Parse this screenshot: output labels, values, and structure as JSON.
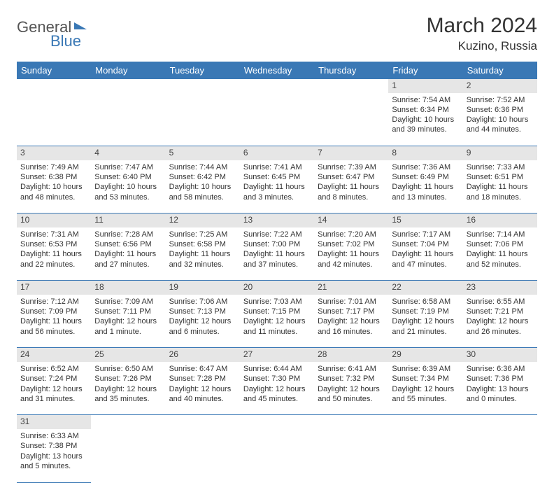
{
  "logo": {
    "part1": "General",
    "part2": "Blue"
  },
  "title": "March 2024",
  "location": "Kuzino, Russia",
  "colors": {
    "header_bg": "#3a78b5",
    "header_text": "#ffffff",
    "dayrow_bg": "#e6e6e6",
    "border": "#3a78b5",
    "text": "#333333"
  },
  "weekdays": [
    "Sunday",
    "Monday",
    "Tuesday",
    "Wednesday",
    "Thursday",
    "Friday",
    "Saturday"
  ],
  "weeks": [
    {
      "nums": [
        "",
        "",
        "",
        "",
        "",
        "1",
        "2"
      ],
      "cells": [
        null,
        null,
        null,
        null,
        null,
        {
          "sunrise": "Sunrise: 7:54 AM",
          "sunset": "Sunset: 6:34 PM",
          "day1": "Daylight: 10 hours",
          "day2": "and 39 minutes."
        },
        {
          "sunrise": "Sunrise: 7:52 AM",
          "sunset": "Sunset: 6:36 PM",
          "day1": "Daylight: 10 hours",
          "day2": "and 44 minutes."
        }
      ]
    },
    {
      "nums": [
        "3",
        "4",
        "5",
        "6",
        "7",
        "8",
        "9"
      ],
      "cells": [
        {
          "sunrise": "Sunrise: 7:49 AM",
          "sunset": "Sunset: 6:38 PM",
          "day1": "Daylight: 10 hours",
          "day2": "and 48 minutes."
        },
        {
          "sunrise": "Sunrise: 7:47 AM",
          "sunset": "Sunset: 6:40 PM",
          "day1": "Daylight: 10 hours",
          "day2": "and 53 minutes."
        },
        {
          "sunrise": "Sunrise: 7:44 AM",
          "sunset": "Sunset: 6:42 PM",
          "day1": "Daylight: 10 hours",
          "day2": "and 58 minutes."
        },
        {
          "sunrise": "Sunrise: 7:41 AM",
          "sunset": "Sunset: 6:45 PM",
          "day1": "Daylight: 11 hours",
          "day2": "and 3 minutes."
        },
        {
          "sunrise": "Sunrise: 7:39 AM",
          "sunset": "Sunset: 6:47 PM",
          "day1": "Daylight: 11 hours",
          "day2": "and 8 minutes."
        },
        {
          "sunrise": "Sunrise: 7:36 AM",
          "sunset": "Sunset: 6:49 PM",
          "day1": "Daylight: 11 hours",
          "day2": "and 13 minutes."
        },
        {
          "sunrise": "Sunrise: 7:33 AM",
          "sunset": "Sunset: 6:51 PM",
          "day1": "Daylight: 11 hours",
          "day2": "and 18 minutes."
        }
      ]
    },
    {
      "nums": [
        "10",
        "11",
        "12",
        "13",
        "14",
        "15",
        "16"
      ],
      "cells": [
        {
          "sunrise": "Sunrise: 7:31 AM",
          "sunset": "Sunset: 6:53 PM",
          "day1": "Daylight: 11 hours",
          "day2": "and 22 minutes."
        },
        {
          "sunrise": "Sunrise: 7:28 AM",
          "sunset": "Sunset: 6:56 PM",
          "day1": "Daylight: 11 hours",
          "day2": "and 27 minutes."
        },
        {
          "sunrise": "Sunrise: 7:25 AM",
          "sunset": "Sunset: 6:58 PM",
          "day1": "Daylight: 11 hours",
          "day2": "and 32 minutes."
        },
        {
          "sunrise": "Sunrise: 7:22 AM",
          "sunset": "Sunset: 7:00 PM",
          "day1": "Daylight: 11 hours",
          "day2": "and 37 minutes."
        },
        {
          "sunrise": "Sunrise: 7:20 AM",
          "sunset": "Sunset: 7:02 PM",
          "day1": "Daylight: 11 hours",
          "day2": "and 42 minutes."
        },
        {
          "sunrise": "Sunrise: 7:17 AM",
          "sunset": "Sunset: 7:04 PM",
          "day1": "Daylight: 11 hours",
          "day2": "and 47 minutes."
        },
        {
          "sunrise": "Sunrise: 7:14 AM",
          "sunset": "Sunset: 7:06 PM",
          "day1": "Daylight: 11 hours",
          "day2": "and 52 minutes."
        }
      ]
    },
    {
      "nums": [
        "17",
        "18",
        "19",
        "20",
        "21",
        "22",
        "23"
      ],
      "cells": [
        {
          "sunrise": "Sunrise: 7:12 AM",
          "sunset": "Sunset: 7:09 PM",
          "day1": "Daylight: 11 hours",
          "day2": "and 56 minutes."
        },
        {
          "sunrise": "Sunrise: 7:09 AM",
          "sunset": "Sunset: 7:11 PM",
          "day1": "Daylight: 12 hours",
          "day2": "and 1 minute."
        },
        {
          "sunrise": "Sunrise: 7:06 AM",
          "sunset": "Sunset: 7:13 PM",
          "day1": "Daylight: 12 hours",
          "day2": "and 6 minutes."
        },
        {
          "sunrise": "Sunrise: 7:03 AM",
          "sunset": "Sunset: 7:15 PM",
          "day1": "Daylight: 12 hours",
          "day2": "and 11 minutes."
        },
        {
          "sunrise": "Sunrise: 7:01 AM",
          "sunset": "Sunset: 7:17 PM",
          "day1": "Daylight: 12 hours",
          "day2": "and 16 minutes."
        },
        {
          "sunrise": "Sunrise: 6:58 AM",
          "sunset": "Sunset: 7:19 PM",
          "day1": "Daylight: 12 hours",
          "day2": "and 21 minutes."
        },
        {
          "sunrise": "Sunrise: 6:55 AM",
          "sunset": "Sunset: 7:21 PM",
          "day1": "Daylight: 12 hours",
          "day2": "and 26 minutes."
        }
      ]
    },
    {
      "nums": [
        "24",
        "25",
        "26",
        "27",
        "28",
        "29",
        "30"
      ],
      "cells": [
        {
          "sunrise": "Sunrise: 6:52 AM",
          "sunset": "Sunset: 7:24 PM",
          "day1": "Daylight: 12 hours",
          "day2": "and 31 minutes."
        },
        {
          "sunrise": "Sunrise: 6:50 AM",
          "sunset": "Sunset: 7:26 PM",
          "day1": "Daylight: 12 hours",
          "day2": "and 35 minutes."
        },
        {
          "sunrise": "Sunrise: 6:47 AM",
          "sunset": "Sunset: 7:28 PM",
          "day1": "Daylight: 12 hours",
          "day2": "and 40 minutes."
        },
        {
          "sunrise": "Sunrise: 6:44 AM",
          "sunset": "Sunset: 7:30 PM",
          "day1": "Daylight: 12 hours",
          "day2": "and 45 minutes."
        },
        {
          "sunrise": "Sunrise: 6:41 AM",
          "sunset": "Sunset: 7:32 PM",
          "day1": "Daylight: 12 hours",
          "day2": "and 50 minutes."
        },
        {
          "sunrise": "Sunrise: 6:39 AM",
          "sunset": "Sunset: 7:34 PM",
          "day1": "Daylight: 12 hours",
          "day2": "and 55 minutes."
        },
        {
          "sunrise": "Sunrise: 6:36 AM",
          "sunset": "Sunset: 7:36 PM",
          "day1": "Daylight: 13 hours",
          "day2": "and 0 minutes."
        }
      ]
    },
    {
      "nums": [
        "31",
        "",
        "",
        "",
        "",
        "",
        ""
      ],
      "cells": [
        {
          "sunrise": "Sunrise: 6:33 AM",
          "sunset": "Sunset: 7:38 PM",
          "day1": "Daylight: 13 hours",
          "day2": "and 5 minutes."
        },
        null,
        null,
        null,
        null,
        null,
        null
      ]
    }
  ]
}
